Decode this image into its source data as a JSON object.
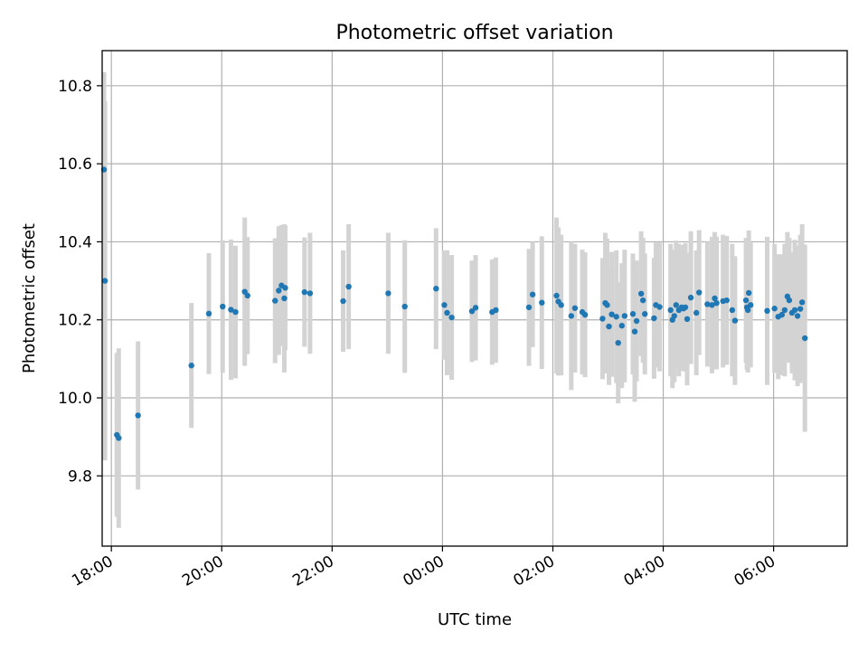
{
  "chart_data": {
    "type": "scatter",
    "title": "Photometric offset variation",
    "xlabel": "UTC time",
    "ylabel": "Photometric offset",
    "x_axis": {
      "kind": "time",
      "min": "17:50",
      "max": "07:20",
      "ticks": [
        "18:00",
        "20:00",
        "22:00",
        "00:00",
        "02:00",
        "04:00",
        "06:00"
      ]
    },
    "y_axis": {
      "min": 9.62,
      "max": 10.89,
      "ticks": [
        "9.8",
        "10.0",
        "10.2",
        "10.4",
        "10.6",
        "10.8"
      ]
    },
    "grid": true,
    "colors": {
      "point": "#1f77b4",
      "error_bar": "#d3d3d3"
    },
    "series": [
      {
        "points": [
          [
            "17:52",
            10.585,
            0.25
          ],
          [
            "17:53",
            10.3,
            0.46
          ],
          [
            "18:06",
            9.905,
            0.21
          ],
          [
            "18:08",
            9.897,
            0.23
          ],
          [
            "18:29",
            9.955,
            0.19
          ],
          [
            "19:27",
            10.083,
            0.16
          ],
          [
            "19:46",
            10.216,
            0.155
          ],
          [
            "20:01",
            10.234,
            0.17
          ],
          [
            "20:10",
            10.226,
            0.18
          ],
          [
            "20:15",
            10.22,
            0.17
          ],
          [
            "20:25",
            10.272,
            0.19
          ],
          [
            "20:28",
            10.262,
            0.15
          ],
          [
            "20:58",
            10.249,
            0.16
          ],
          [
            "21:02",
            10.275,
            0.165
          ],
          [
            "21:05",
            10.288,
            0.155
          ],
          [
            "21:08",
            10.255,
            0.19
          ],
          [
            "21:09",
            10.282,
            0.16
          ],
          [
            "21:30",
            10.271,
            0.14
          ],
          [
            "21:36",
            10.268,
            0.155
          ],
          [
            "22:12",
            10.248,
            0.13
          ],
          [
            "22:18",
            10.285,
            0.16
          ],
          [
            "23:01",
            10.268,
            0.155
          ],
          [
            "23:19",
            10.234,
            0.17
          ],
          [
            "23:53",
            10.28,
            0.155
          ],
          [
            "00:02",
            10.238,
            0.14
          ],
          [
            "00:05",
            10.218,
            0.16
          ],
          [
            "00:10",
            10.206,
            0.16
          ],
          [
            "00:32",
            10.222,
            0.13
          ],
          [
            "00:36",
            10.231,
            0.135
          ],
          [
            "00:54",
            10.22,
            0.135
          ],
          [
            "00:58",
            10.225,
            0.135
          ],
          [
            "01:34",
            10.232,
            0.15
          ],
          [
            "01:38",
            10.265,
            0.135
          ],
          [
            "01:48",
            10.244,
            0.17
          ],
          [
            "02:04",
            10.262,
            0.2
          ],
          [
            "02:06",
            10.247,
            0.19
          ],
          [
            "02:09",
            10.238,
            0.18
          ],
          [
            "02:20",
            10.21,
            0.19
          ],
          [
            "02:24",
            10.23,
            0.165
          ],
          [
            "02:32",
            10.22,
            0.16
          ],
          [
            "02:35",
            10.213,
            0.16
          ],
          [
            "02:54",
            10.203,
            0.155
          ],
          [
            "02:57",
            10.243,
            0.18
          ],
          [
            "02:59",
            10.238,
            0.17
          ],
          [
            "03:01",
            10.183,
            0.15
          ],
          [
            "03:04",
            10.214,
            0.16
          ],
          [
            "03:09",
            10.208,
            0.17
          ],
          [
            "03:11",
            10.141,
            0.155
          ],
          [
            "03:15",
            10.185,
            0.16
          ],
          [
            "03:18",
            10.21,
            0.17
          ],
          [
            "03:27",
            10.215,
            0.155
          ],
          [
            "03:29",
            10.17,
            0.18
          ],
          [
            "03:31",
            10.197,
            0.155
          ],
          [
            "03:36",
            10.267,
            0.16
          ],
          [
            "03:38",
            10.25,
            0.16
          ],
          [
            "03:40",
            10.215,
            0.155
          ],
          [
            "03:50",
            10.204,
            0.155
          ],
          [
            "03:52",
            10.238,
            0.16
          ],
          [
            "03:56",
            10.233,
            0.165
          ],
          [
            "04:08",
            10.225,
            0.17
          ],
          [
            "04:10",
            10.2,
            0.175
          ],
          [
            "04:12",
            10.21,
            0.17
          ],
          [
            "04:14",
            10.238,
            0.165
          ],
          [
            "04:17",
            10.225,
            0.17
          ],
          [
            "04:20",
            10.232,
            0.16
          ],
          [
            "04:22",
            10.229,
            0.16
          ],
          [
            "04:24",
            10.232,
            0.165
          ],
          [
            "04:26",
            10.202,
            0.17
          ],
          [
            "04:30",
            10.257,
            0.17
          ],
          [
            "04:36",
            10.218,
            0.16
          ],
          [
            "04:39",
            10.27,
            0.16
          ],
          [
            "04:48",
            10.24,
            0.16
          ],
          [
            "04:53",
            10.238,
            0.175
          ],
          [
            "04:56",
            10.255,
            0.17
          ],
          [
            "04:58",
            10.243,
            0.17
          ],
          [
            "05:05",
            10.248,
            0.17
          ],
          [
            "05:09",
            10.25,
            0.165
          ],
          [
            "05:15",
            10.225,
            0.17
          ],
          [
            "05:18",
            10.198,
            0.165
          ],
          [
            "05:30",
            10.25,
            0.16
          ],
          [
            "05:31",
            10.232,
            0.16
          ],
          [
            "05:32",
            10.225,
            0.16
          ],
          [
            "05:33",
            10.269,
            0.16
          ],
          [
            "05:35",
            10.238,
            0.16
          ],
          [
            "05:53",
            10.223,
            0.19
          ],
          [
            "06:01",
            10.229,
            0.165
          ],
          [
            "06:05",
            10.208,
            0.16
          ],
          [
            "06:09",
            10.213,
            0.155
          ],
          [
            "06:12",
            10.225,
            0.17
          ],
          [
            "06:15",
            10.26,
            0.165
          ],
          [
            "06:17",
            10.25,
            0.16
          ],
          [
            "06:20",
            10.218,
            0.155
          ],
          [
            "06:23",
            10.225,
            0.18
          ],
          [
            "06:26",
            10.21,
            0.18
          ],
          [
            "06:29",
            10.228,
            0.19
          ],
          [
            "06:31",
            10.245,
            0.2
          ],
          [
            "06:34",
            10.153,
            0.24
          ]
        ]
      }
    ]
  }
}
